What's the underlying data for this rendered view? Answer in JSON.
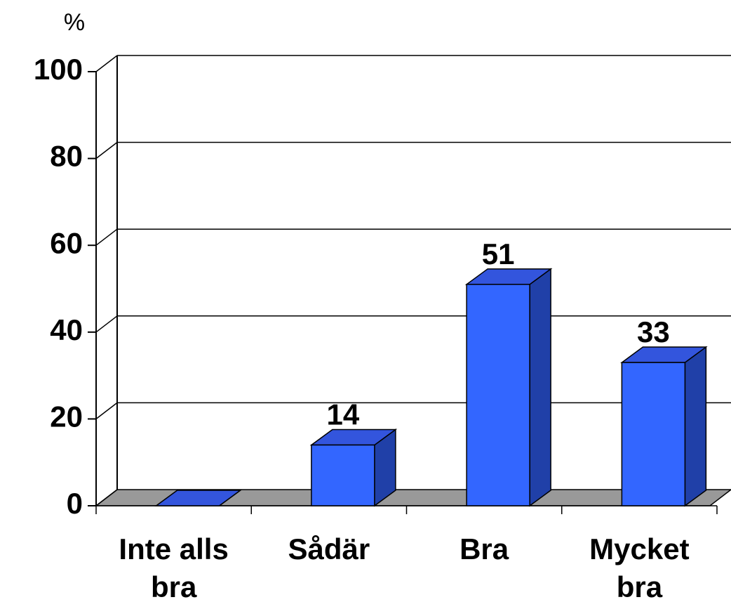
{
  "chart_data": {
    "type": "bar3d",
    "y_label": "%",
    "categories": [
      "Inte alls bra",
      "Sådär",
      "Bra",
      "Mycket bra"
    ],
    "values": [
      0,
      14,
      51,
      33
    ],
    "value_labels": [
      null,
      "14",
      "51",
      "33"
    ],
    "color": "#3366ff",
    "ylim": [
      0,
      100
    ],
    "yticks": [
      0,
      20,
      40,
      60,
      80,
      100
    ],
    "grid": true
  }
}
